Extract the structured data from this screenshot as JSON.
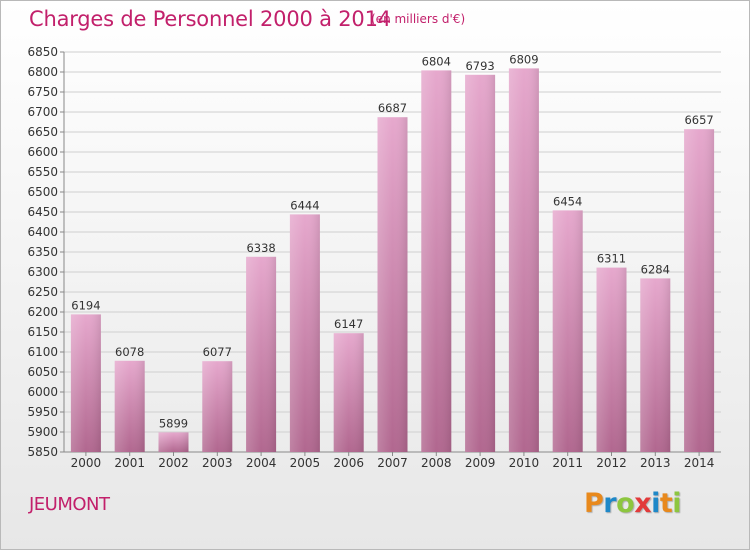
{
  "title": "Charges de Personnel 2000 à 2014",
  "subtitle": "(en milliers d'€)",
  "commune": "JEUMONT",
  "brand": {
    "letters": [
      {
        "ch": "P",
        "color": "#e8891c"
      },
      {
        "ch": "r",
        "color": "#1e88c8"
      },
      {
        "ch": "o",
        "color": "#8dc63f"
      },
      {
        "ch": "x",
        "color": "#e23a3a"
      },
      {
        "ch": "i",
        "color": "#1e88c8"
      },
      {
        "ch": "t",
        "color": "#e8891c"
      },
      {
        "ch": "i",
        "color": "#8dc63f"
      }
    ]
  },
  "colors": {
    "title": "#c2206b",
    "bar_top": "#e6a8cd",
    "bar_bottom": "#b1678f",
    "grid": "#cfcfcf"
  },
  "chart_data": {
    "type": "bar",
    "categories": [
      "2000",
      "2001",
      "2002",
      "2003",
      "2004",
      "2005",
      "2006",
      "2007",
      "2008",
      "2009",
      "2010",
      "2011",
      "2012",
      "2013",
      "2014"
    ],
    "values": [
      6194,
      6078,
      5899,
      6077,
      6338,
      6444,
      6147,
      6687,
      6804,
      6793,
      6809,
      6454,
      6311,
      6284,
      6657
    ],
    "ylim": [
      5850,
      6850
    ],
    "yticks": [
      5850,
      5900,
      5950,
      6000,
      6050,
      6100,
      6150,
      6200,
      6250,
      6300,
      6350,
      6400,
      6450,
      6500,
      6550,
      6600,
      6650,
      6700,
      6750,
      6800,
      6850
    ],
    "grid": true,
    "data_labels": true
  }
}
